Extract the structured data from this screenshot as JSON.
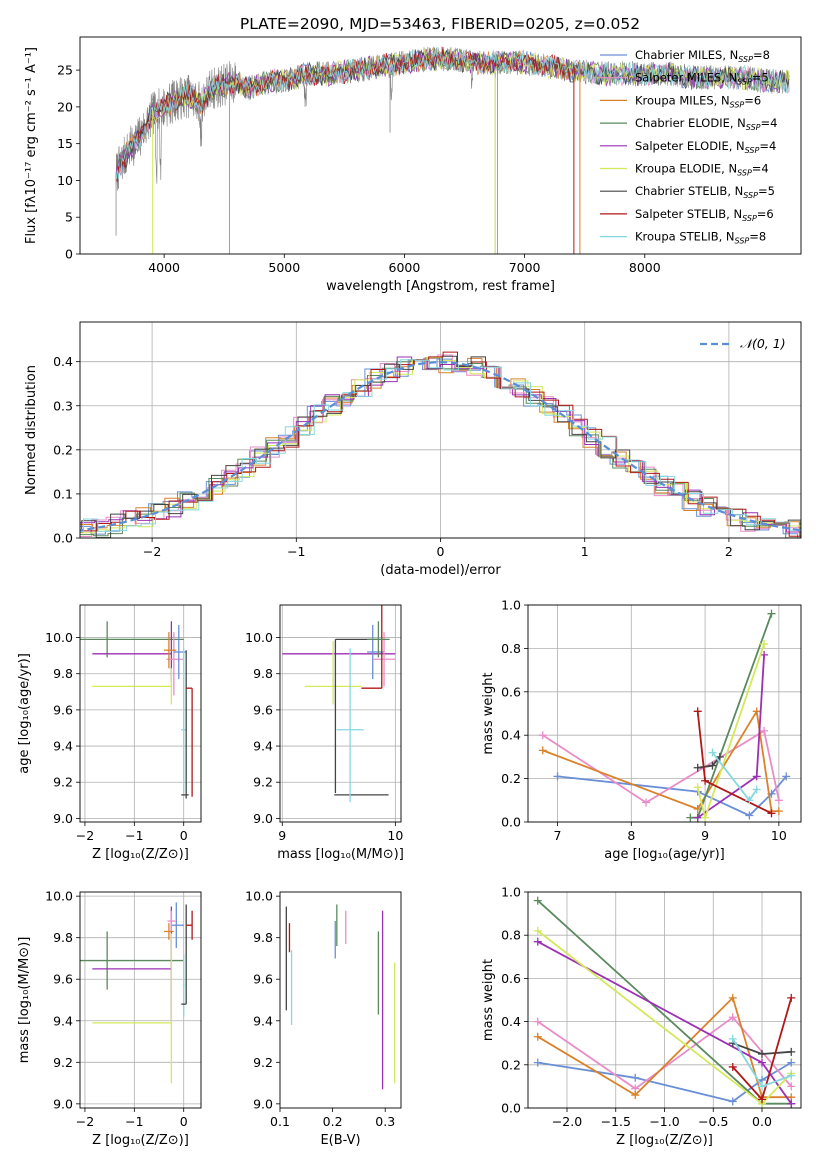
{
  "figure": {
    "title": "PLATE=2090, MJD=53463, FIBERID=0205, z=0.052"
  },
  "chart_data": [
    {
      "type": "line",
      "name": "spectrum",
      "xlabel": "wavelength [Angstrom, rest frame]",
      "ylabel": "Flux [fλ10⁻¹⁷ erg cm⁻² s⁻¹ A⁻¹]",
      "xlim": [
        3300,
        9300
      ],
      "ylim": [
        0,
        29.5
      ],
      "xticks": [
        4000,
        5000,
        6000,
        7000,
        8000
      ],
      "yticks": [
        0,
        5,
        10,
        15,
        20,
        25
      ],
      "grid": false,
      "legend_position": "right",
      "observed": {
        "x": [
          3600,
          3700,
          3800,
          3900,
          4000,
          4100,
          4200,
          4300,
          4400,
          4500,
          4600,
          4700,
          4800,
          4900,
          5000,
          5200,
          5400,
          5600,
          5800,
          6000,
          6200,
          6400,
          6600,
          6800,
          7000,
          7200,
          7400,
          7600,
          7800,
          8000,
          8200,
          8400,
          8600,
          8800,
          9000,
          9200
        ],
        "y": [
          11,
          14,
          16,
          19,
          20,
          21,
          21.5,
          20.5,
          22.5,
          23,
          23.5,
          22.5,
          23,
          23.5,
          23.5,
          24.5,
          24.5,
          25,
          25.5,
          26,
          26.5,
          26.5,
          26,
          26,
          26,
          25.5,
          25,
          24.5,
          24.5,
          24.5,
          24.5,
          24,
          24,
          24,
          23.5,
          23.5
        ]
      },
      "series": [
        {
          "name": "Chabrier MILES, N$_{SSP}$=8",
          "label": "Chabrier MILES, N",
          "sub": "SSP",
          "suffix": "=8",
          "color": "#6a8fd6"
        },
        {
          "name": "Salpeter MILES, N$_{SSP}$=5",
          "label": "Salpeter MILES, N",
          "sub": "SSP",
          "suffix": "=5",
          "color": "#e98cc8"
        },
        {
          "name": "Kroupa MILES, N$_{SSP}$=6",
          "label": "Kroupa MILES, N",
          "sub": "SSP",
          "suffix": "=6",
          "color": "#d9822b"
        },
        {
          "name": "Chabrier ELODIE, N$_{SSP}$=4",
          "label": "Chabrier ELODIE, N",
          "sub": "SSP",
          "suffix": "=4",
          "color": "#5b8a5e"
        },
        {
          "name": "Salpeter ELODIE, N$_{SSP}$=4",
          "label": "Salpeter ELODIE, N",
          "sub": "SSP",
          "suffix": "=4",
          "color": "#9b30b5"
        },
        {
          "name": "Kroupa ELODIE, N$_{SSP}$=4",
          "label": "Kroupa ELODIE, N",
          "sub": "SSP",
          "suffix": "=4",
          "color": "#d4e85a"
        },
        {
          "name": "Chabrier STELIB, N$_{SSP}$=5",
          "label": "Chabrier STELIB, N",
          "sub": "SSP",
          "suffix": "=5",
          "color": "#444444"
        },
        {
          "name": "Salpeter STELIB, N$_{SSP}$=6",
          "label": "Salpeter STELIB, N",
          "sub": "SSP",
          "suffix": "=6",
          "color": "#b01818"
        },
        {
          "name": "Kroupa STELIB, N$_{SSP}$=8",
          "label": "Kroupa STELIB, N",
          "sub": "SSP",
          "suffix": "=8",
          "color": "#86d8e0"
        }
      ]
    },
    {
      "type": "bar",
      "name": "residual-histogram",
      "xlabel": "(data-model)/error",
      "ylabel": "Normed distribution",
      "xlim": [
        -2.5,
        2.5
      ],
      "ylim": [
        0,
        0.49
      ],
      "xticks": [
        -2,
        -1,
        0,
        1,
        2
      ],
      "yticks": [
        0.0,
        0.1,
        0.2,
        0.3,
        0.4
      ],
      "grid": true,
      "legend_position": "top-right",
      "legend": "𝒩(0, 1)",
      "reference": {
        "name": "𝒩(0, 1)",
        "distribution": "normal",
        "mean": 0,
        "sd": 1,
        "color": "#5b8ed6"
      }
    },
    {
      "type": "scatter",
      "name": "age-vs-Z",
      "xlabel": "Z [log₁₀(Z/Z⊙)]",
      "ylabel": "age  [log₁₀(age/yr)]",
      "xlim": [
        -2.1,
        0.35
      ],
      "ylim": [
        8.98,
        10.18
      ],
      "xticks": [
        -2,
        -1,
        0
      ],
      "yticks": [
        9.0,
        9.2,
        9.4,
        9.6,
        9.8,
        10.0
      ],
      "grid": true
    },
    {
      "type": "scatter",
      "name": "age-vs-mass",
      "xlabel": "mass [log₁₀(M/M⊙)]",
      "xlim": [
        8.98,
        10.05
      ],
      "ylim": [
        8.98,
        10.18
      ],
      "xticks": [
        9,
        10
      ],
      "yticks": [
        9.0,
        9.2,
        9.4,
        9.6,
        9.8,
        10.0
      ],
      "grid": true
    },
    {
      "type": "line",
      "name": "weight-vs-age",
      "xlabel": "age  [log₁₀(age/yr)]",
      "ylabel": "mass weight",
      "xlim": [
        6.6,
        10.3
      ],
      "ylim": [
        0,
        1.0
      ],
      "xticks": [
        7,
        8,
        9,
        10
      ],
      "yticks": [
        0.0,
        0.2,
        0.4,
        0.6,
        0.8,
        1.0
      ],
      "grid": true
    },
    {
      "type": "scatter",
      "name": "mass-vs-Z",
      "xlabel": "Z [log₁₀(Z/Z⊙)]",
      "ylabel": "mass [log₁₀(M/M⊙)]",
      "xlim": [
        -2.1,
        0.35
      ],
      "ylim": [
        8.98,
        10.02
      ],
      "xticks": [
        -2,
        -1,
        0
      ],
      "yticks": [
        9.0,
        9.2,
        9.4,
        9.6,
        9.8,
        10.0
      ],
      "grid": true
    },
    {
      "type": "scatter",
      "name": "mass-vs-EBV",
      "xlabel": "E(B-V)",
      "xlim": [
        0.1,
        0.33
      ],
      "ylim": [
        8.98,
        10.02
      ],
      "xticks": [
        0.1,
        0.2,
        0.3
      ],
      "yticks": [
        9.0,
        9.2,
        9.4,
        9.6,
        9.8,
        10.0
      ],
      "grid": false
    },
    {
      "type": "line",
      "name": "weight-vs-Z",
      "xlabel": "Z [log₁₀(Z/Z⊙)]",
      "ylabel": "mass weight",
      "xlim": [
        -2.4,
        0.4
      ],
      "ylim": [
        0,
        1.0
      ],
      "xticks": [
        -2.0,
        -1.5,
        -1.0,
        -0.5,
        0.0
      ],
      "yticks": [
        0.0,
        0.2,
        0.4,
        0.6,
        0.8,
        1.0
      ],
      "grid": true
    }
  ],
  "populations": [
    {
      "series": 0,
      "points": [
        [
          -2.3,
          7.0,
          0.21
        ],
        [
          -1.3,
          8.9,
          0.14
        ],
        [
          -0.3,
          9.6,
          0.03
        ],
        [
          0.0,
          9.9,
          0.13
        ],
        [
          0.3,
          10.1,
          0.21
        ]
      ]
    },
    {
      "series": 1,
      "points": [
        [
          -2.3,
          6.8,
          0.4
        ],
        [
          -1.3,
          8.2,
          0.09
        ],
        [
          -0.3,
          9.8,
          0.42
        ],
        [
          0.3,
          10.0,
          0.1
        ]
      ]
    },
    {
      "series": 2,
      "points": [
        [
          -2.3,
          6.8,
          0.33
        ],
        [
          -1.3,
          8.9,
          0.06
        ],
        [
          -0.3,
          9.7,
          0.51
        ],
        [
          0.0,
          9.9,
          0.05
        ],
        [
          0.3,
          10.0,
          0.05
        ]
      ]
    },
    {
      "series": 3,
      "points": [
        [
          -2.3,
          9.9,
          0.96
        ],
        [
          0.0,
          8.9,
          0.02
        ],
        [
          0.3,
          8.8,
          0.02
        ]
      ]
    },
    {
      "series": 4,
      "points": [
        [
          -2.3,
          9.8,
          0.77
        ],
        [
          0.0,
          9.7,
          0.21
        ],
        [
          0.3,
          8.9,
          0.02
        ]
      ]
    },
    {
      "series": 5,
      "points": [
        [
          -2.3,
          9.8,
          0.82
        ],
        [
          0.0,
          9.0,
          0.02
        ],
        [
          0.3,
          8.9,
          0.16
        ]
      ]
    },
    {
      "series": 6,
      "points": [
        [
          -0.3,
          9.2,
          0.3
        ],
        [
          0.0,
          8.9,
          0.25
        ],
        [
          0.3,
          9.1,
          0.26
        ]
      ]
    },
    {
      "series": 7,
      "points": [
        [
          -0.3,
          9.0,
          0.19
        ],
        [
          0.0,
          9.9,
          0.04
        ],
        [
          0.3,
          8.9,
          0.51
        ]
      ]
    },
    {
      "series": 8,
      "points": [
        [
          -0.3,
          9.1,
          0.32
        ],
        [
          0.0,
          9.6,
          0.1
        ],
        [
          0.3,
          9.7,
          0.15
        ]
      ]
    }
  ],
  "estimates": {
    "age_Z": [
      {
        "series": 3,
        "x": -1.55,
        "y": 9.99,
        "xerr": [
          0.55,
          1.55
        ],
        "yerr": [
          0.1,
          0.1
        ]
      },
      {
        "series": 4,
        "x": -0.25,
        "y": 9.91,
        "xerr": [
          1.6,
          0.0
        ],
        "yerr": [
          0.15,
          0.18
        ]
      },
      {
        "series": 5,
        "x": -0.25,
        "y": 9.73,
        "xerr": [
          1.6,
          0.0
        ],
        "yerr": [
          0.1,
          0.1
        ]
      },
      {
        "series": 1,
        "x": -0.2,
        "y": 9.88,
        "xerr": [
          0.15,
          0.2
        ],
        "yerr": [
          0.2,
          0.15
        ]
      },
      {
        "series": 0,
        "x": -0.1,
        "y": 9.92,
        "xerr": [
          0.1,
          0.15
        ],
        "yerr": [
          0.15,
          0.15
        ]
      },
      {
        "series": 2,
        "x": -0.3,
        "y": 9.93,
        "xerr": [
          0.1,
          0.15
        ],
        "yerr": [
          0.1,
          0.1
        ]
      },
      {
        "series": 8,
        "x": 0.0,
        "y": 9.49,
        "xerr": [
          0.05,
          0.05
        ],
        "yerr": [
          0.35,
          0.45
        ]
      },
      {
        "series": 6,
        "x": 0.05,
        "y": 9.13,
        "xerr": [
          0.1,
          0.05
        ],
        "yerr": [
          0.02,
          0.8
        ]
      },
      {
        "series": 7,
        "x": 0.17,
        "y": 9.72,
        "xerr": [
          0.13,
          0.0
        ],
        "yerr": [
          0.6,
          0.0
        ]
      }
    ],
    "age_mass": [
      {
        "series": 4,
        "x": 9.55,
        "y": 9.91,
        "xerr": [
          0.55,
          0.45
        ],
        "yerr": [
          0.0,
          0.0
        ]
      },
      {
        "series": 5,
        "x": 9.45,
        "y": 9.73,
        "xerr": [
          0.25,
          0.25
        ],
        "yerr": [
          0.1,
          0.25
        ]
      },
      {
        "series": 6,
        "x": 9.47,
        "y": 9.99,
        "xerr": [
          0.0,
          0.4
        ],
        "yerr": [
          0.85,
          0.0
        ]
      },
      {
        "series": 6,
        "x": 9.7,
        "y": 9.13,
        "xerr": [
          0.24,
          0.24
        ],
        "yerr": [
          0.0,
          0.0
        ]
      },
      {
        "series": 8,
        "x": 9.6,
        "y": 9.49,
        "xerr": [
          0.12,
          0.12
        ],
        "yerr": [
          0.4,
          0.45
        ]
      },
      {
        "series": 0,
        "x": 9.8,
        "y": 9.92,
        "xerr": [
          0.05,
          0.1
        ],
        "yerr": [
          0.15,
          0.15
        ]
      },
      {
        "series": 1,
        "x": 9.9,
        "y": 9.88,
        "xerr": [
          0.1,
          0.1
        ],
        "yerr": [
          0.15,
          0.15
        ]
      },
      {
        "series": 7,
        "x": 9.88,
        "y": 9.72,
        "xerr": [
          0.18,
          0.0
        ],
        "yerr": [
          0.0,
          0.6
        ]
      },
      {
        "series": 3,
        "x": 9.85,
        "y": 9.99,
        "xerr": [
          0.1,
          0.1
        ],
        "yerr": [
          0.1,
          0.1
        ]
      }
    ],
    "mass_Z": [
      {
        "series": 3,
        "x": -1.55,
        "y": 9.69,
        "xerr": [
          0.55,
          1.55
        ],
        "yerr": [
          0.14,
          0.14
        ]
      },
      {
        "series": 4,
        "x": -0.25,
        "y": 9.65,
        "xerr": [
          1.6,
          0.0
        ],
        "yerr": [
          0.25,
          0.3
        ]
      },
      {
        "series": 5,
        "x": -0.25,
        "y": 9.39,
        "xerr": [
          1.6,
          0.0
        ],
        "yerr": [
          0.29,
          0.43
        ]
      },
      {
        "series": 0,
        "x": -0.15,
        "y": 9.86,
        "xerr": [
          0.1,
          0.15
        ],
        "yerr": [
          0.11,
          0.11
        ]
      },
      {
        "series": 1,
        "x": -0.25,
        "y": 9.88,
        "xerr": [
          0.08,
          0.08
        ],
        "yerr": [
          0.05,
          0.05
        ]
      },
      {
        "series": 2,
        "x": -0.3,
        "y": 9.83,
        "xerr": [
          0.1,
          0.1
        ],
        "yerr": [
          0.04,
          0.04
        ]
      },
      {
        "series": 8,
        "x": 0.0,
        "y": 9.57,
        "xerr": [
          0.02,
          0.02
        ],
        "yerr": [
          0.15,
          0.15
        ]
      },
      {
        "series": 6,
        "x": 0.05,
        "y": 9.48,
        "xerr": [
          0.1,
          0.0
        ],
        "yerr": [
          0.0,
          0.48
        ]
      },
      {
        "series": 7,
        "x": 0.17,
        "y": 9.86,
        "xerr": [
          0.13,
          0.0
        ],
        "yerr": [
          0.07,
          0.07
        ]
      }
    ],
    "mass_EBV": [
      {
        "series": 6,
        "x": 0.112,
        "y": 9.7,
        "yerr": [
          0.25,
          0.25
        ]
      },
      {
        "series": 7,
        "x": 0.118,
        "y": 9.8,
        "yerr": [
          0.07,
          0.07
        ]
      },
      {
        "series": 8,
        "x": 0.122,
        "y": 9.56,
        "yerr": [
          0.18,
          0.18
        ]
      },
      {
        "series": 0,
        "x": 0.205,
        "y": 9.79,
        "yerr": [
          0.09,
          0.09
        ]
      },
      {
        "series": 3,
        "x": 0.208,
        "y": 9.86,
        "yerr": [
          0.1,
          0.1
        ]
      },
      {
        "series": 1,
        "x": 0.225,
        "y": 9.85,
        "yerr": [
          0.08,
          0.08
        ]
      },
      {
        "series": 3,
        "x": 0.287,
        "y": 9.63,
        "yerr": [
          0.2,
          0.2
        ]
      },
      {
        "series": 4,
        "x": 0.295,
        "y": 9.5,
        "yerr": [
          0.43,
          0.43
        ]
      },
      {
        "series": 5,
        "x": 0.318,
        "y": 9.39,
        "yerr": [
          0.29,
          0.29
        ]
      }
    ]
  }
}
